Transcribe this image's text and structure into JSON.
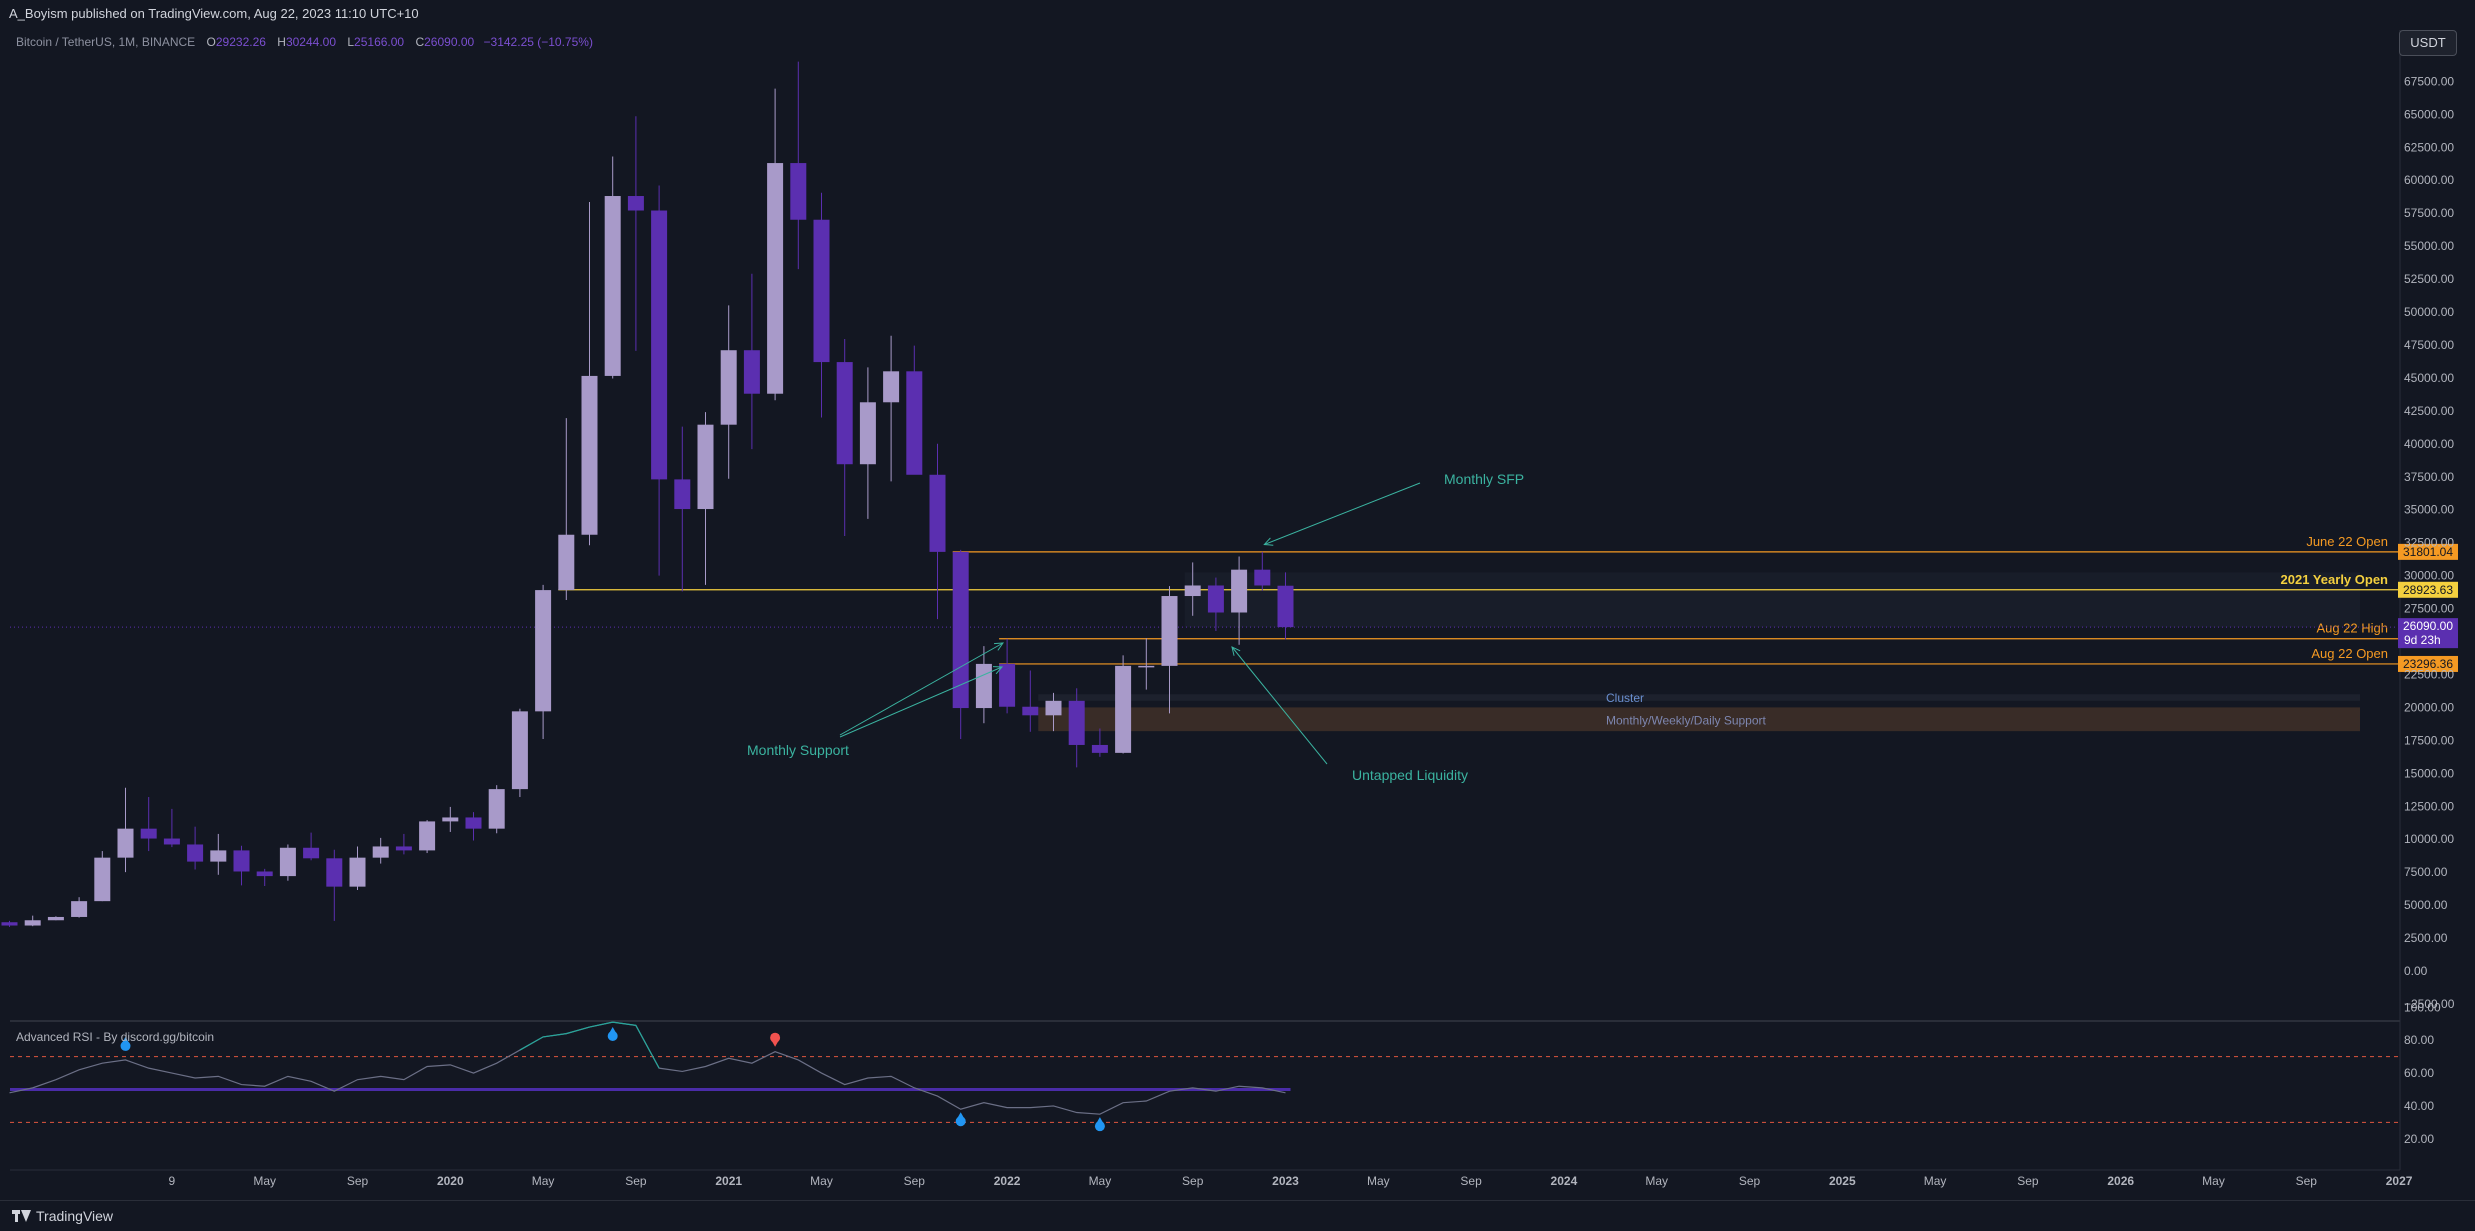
{
  "header": {
    "published": "A_Boyism published on TradingView.com, Aug 22, 2023 11:10 UTC+10",
    "currency_button": "USDT"
  },
  "legend": {
    "symbol": "Bitcoin / TetherUS, 1M, BINANCE",
    "o_label": "O",
    "o_value": "29232.26",
    "h_label": "H",
    "h_value": "30244.00",
    "l_label": "L",
    "l_value": "25166.00",
    "c_label": "C",
    "c_value": "26090.00",
    "change": "−3142.25 (−10.75%)"
  },
  "indicator": {
    "title": "Advanced RSI - By discord.gg/bitcoin"
  },
  "footer": {
    "brand": "TradingView"
  },
  "colors": {
    "background": "#131722",
    "up_candle": "#a89ac9",
    "down_candle": "#5b2fb0",
    "level_orange": "#f59a23",
    "level_yellow": "#f4d03f",
    "annotation_teal": "#3bb3a0",
    "rsi_signal_blue": "#2196f3",
    "rsi_signal_red": "#f0524f"
  },
  "chart_data": [
    {
      "type": "candlestick",
      "symbol": "Bitcoin / TetherUS, 1M, BINANCE",
      "timeframe": "1M",
      "y_axis": {
        "ticks": [
          67500,
          65000,
          62500,
          60000,
          57500,
          55000,
          52500,
          50000,
          47500,
          45000,
          42500,
          40000,
          37500,
          35000,
          32500,
          30000,
          27500,
          25000,
          22500,
          20000,
          17500,
          15000,
          12500,
          10000,
          7500,
          5000,
          2500,
          0,
          -2500
        ],
        "labels": [
          "67500.00",
          "65000.00",
          "62500.00",
          "60000.00",
          "57500.00",
          "55000.00",
          "52500.00",
          "50000.00",
          "47500.00",
          "45000.00",
          "42500.00",
          "40000.00",
          "37500.00",
          "35000.00",
          "32500.00",
          "30000.00",
          "27500.00",
          "25000.00",
          "22500.00",
          "20000.00",
          "17500.00",
          "15000.00",
          "12500.00",
          "10000.00",
          "7500.00",
          "5000.00",
          "2500.00",
          "0.00",
          "−2500.00"
        ],
        "range": [
          -3700,
          70300
        ]
      },
      "x_axis": {
        "labels": [
          "9",
          "May",
          "Sep",
          "2020",
          "May",
          "Sep",
          "2021",
          "May",
          "Sep",
          "2022",
          "May",
          "Sep",
          "2023",
          "May",
          "Sep",
          "2024",
          "May",
          "Sep",
          "2025",
          "May",
          "Sep",
          "2026",
          "May",
          "Sep",
          "2027",
          "May"
        ],
        "label_months": [
          7,
          11,
          15,
          19,
          23,
          27,
          31,
          35,
          39,
          43,
          47,
          51,
          55,
          59,
          63,
          67,
          71,
          75,
          79,
          83,
          87,
          91,
          95,
          99,
          103,
          107
        ]
      },
      "candles": [
        {
          "t": "2019-01",
          "o": 3700,
          "h": 3800,
          "l": 3350,
          "c": 3450
        },
        {
          "t": "2019-02",
          "o": 3450,
          "h": 4200,
          "l": 3400,
          "c": 3850
        },
        {
          "t": "2019-03",
          "o": 3850,
          "h": 4150,
          "l": 3850,
          "c": 4100
        },
        {
          "t": "2019-04",
          "o": 4100,
          "h": 5600,
          "l": 4050,
          "c": 5300
        },
        {
          "t": "2019-05",
          "o": 5300,
          "h": 9100,
          "l": 5300,
          "c": 8600
        },
        {
          "t": "2019-06",
          "o": 8600,
          "h": 13900,
          "l": 7500,
          "c": 10800
        },
        {
          "t": "2019-07",
          "o": 10800,
          "h": 13200,
          "l": 9100,
          "c": 10050
        },
        {
          "t": "2019-08",
          "o": 10050,
          "h": 12300,
          "l": 9400,
          "c": 9600
        },
        {
          "t": "2019-09",
          "o": 9600,
          "h": 10950,
          "l": 7700,
          "c": 8300
        },
        {
          "t": "2019-10",
          "o": 8300,
          "h": 10400,
          "l": 7300,
          "c": 9150
        },
        {
          "t": "2019-11",
          "o": 9150,
          "h": 9500,
          "l": 6500,
          "c": 7550
        },
        {
          "t": "2019-12",
          "o": 7550,
          "h": 7750,
          "l": 6450,
          "c": 7200
        },
        {
          "t": "2020-01",
          "o": 7200,
          "h": 9600,
          "l": 6850,
          "c": 9350
        },
        {
          "t": "2020-02",
          "o": 9350,
          "h": 10500,
          "l": 8400,
          "c": 8550
        },
        {
          "t": "2020-03",
          "o": 8550,
          "h": 9200,
          "l": 3800,
          "c": 6400
        },
        {
          "t": "2020-04",
          "o": 6400,
          "h": 9450,
          "l": 6150,
          "c": 8600
        },
        {
          "t": "2020-05",
          "o": 8600,
          "h": 10100,
          "l": 8150,
          "c": 9450
        },
        {
          "t": "2020-06",
          "o": 9450,
          "h": 10400,
          "l": 8850,
          "c": 9150
        },
        {
          "t": "2020-07",
          "o": 9150,
          "h": 11450,
          "l": 8950,
          "c": 11350
        },
        {
          "t": "2020-08",
          "o": 11350,
          "h": 12450,
          "l": 10550,
          "c": 11650
        },
        {
          "t": "2020-09",
          "o": 11650,
          "h": 12050,
          "l": 9900,
          "c": 10800
        },
        {
          "t": "2020-10",
          "o": 10800,
          "h": 14100,
          "l": 10450,
          "c": 13800
        },
        {
          "t": "2020-11",
          "o": 13800,
          "h": 19900,
          "l": 13200,
          "c": 19700
        },
        {
          "t": "2020-12",
          "o": 19700,
          "h": 29300,
          "l": 17600,
          "c": 28900
        },
        {
          "t": "2021-01",
          "o": 28900,
          "h": 41950,
          "l": 28150,
          "c": 33100
        },
        {
          "t": "2021-02",
          "o": 33100,
          "h": 58350,
          "l": 32300,
          "c": 45150
        },
        {
          "t": "2021-03",
          "o": 45150,
          "h": 61800,
          "l": 44950,
          "c": 58800
        },
        {
          "t": "2021-04",
          "o": 58800,
          "h": 64850,
          "l": 47050,
          "c": 57700
        },
        {
          "t": "2021-05",
          "o": 57700,
          "h": 59600,
          "l": 30000,
          "c": 37300
        },
        {
          "t": "2021-06",
          "o": 37300,
          "h": 41300,
          "l": 28800,
          "c": 35050
        },
        {
          "t": "2021-07",
          "o": 35050,
          "h": 42400,
          "l": 29300,
          "c": 41450
        },
        {
          "t": "2021-08",
          "o": 41450,
          "h": 50500,
          "l": 37350,
          "c": 47100
        },
        {
          "t": "2021-09",
          "o": 47100,
          "h": 52900,
          "l": 39600,
          "c": 43800
        },
        {
          "t": "2021-10",
          "o": 43800,
          "h": 66950,
          "l": 43300,
          "c": 61300
        },
        {
          "t": "2021-11",
          "o": 61300,
          "h": 69000,
          "l": 53250,
          "c": 57000
        },
        {
          "t": "2021-12",
          "o": 57000,
          "h": 59050,
          "l": 42000,
          "c": 46200
        },
        {
          "t": "2022-01",
          "o": 46200,
          "h": 47950,
          "l": 33000,
          "c": 38450
        },
        {
          "t": "2022-02",
          "o": 38450,
          "h": 45800,
          "l": 34300,
          "c": 43150
        },
        {
          "t": "2022-03",
          "o": 43150,
          "h": 48200,
          "l": 37150,
          "c": 45500
        },
        {
          "t": "2022-04",
          "o": 45500,
          "h": 47450,
          "l": 37700,
          "c": 37650
        },
        {
          "t": "2022-05",
          "o": 37650,
          "h": 40000,
          "l": 26700,
          "c": 31800
        },
        {
          "t": "2022-06",
          "o": 31800,
          "h": 31950,
          "l": 17600,
          "c": 19950
        },
        {
          "t": "2022-07",
          "o": 19950,
          "h": 24650,
          "l": 18800,
          "c": 23300
        },
        {
          "t": "2022-08",
          "o": 23300,
          "h": 25200,
          "l": 19550,
          "c": 20050
        },
        {
          "t": "2022-09",
          "o": 20050,
          "h": 22800,
          "l": 18150,
          "c": 19400
        },
        {
          "t": "2022-10",
          "o": 19400,
          "h": 21100,
          "l": 18200,
          "c": 20500
        },
        {
          "t": "2022-11",
          "o": 20500,
          "h": 21450,
          "l": 15450,
          "c": 17150
        },
        {
          "t": "2022-12",
          "o": 17150,
          "h": 18400,
          "l": 16250,
          "c": 16550
        },
        {
          "t": "2023-01",
          "o": 16550,
          "h": 23950,
          "l": 16500,
          "c": 23150
        },
        {
          "t": "2023-02",
          "o": 23150,
          "h": 25250,
          "l": 21350,
          "c": 23150
        },
        {
          "t": "2023-03",
          "o": 23150,
          "h": 29200,
          "l": 19550,
          "c": 28450
        },
        {
          "t": "2023-04",
          "o": 28450,
          "h": 31000,
          "l": 26950,
          "c": 29250
        },
        {
          "t": "2023-05",
          "o": 29250,
          "h": 29850,
          "l": 25800,
          "c": 27200
        },
        {
          "t": "2023-06",
          "o": 27200,
          "h": 31450,
          "l": 24750,
          "c": 30450
        },
        {
          "t": "2023-07",
          "o": 30450,
          "h": 31800,
          "l": 28850,
          "c": 29250
        },
        {
          "t": "2023-08",
          "o": 29232.26,
          "h": 30244.0,
          "l": 25166.0,
          "c": 26090.0
        }
      ],
      "levels": [
        {
          "label": "June 22 Open",
          "price": 31801.04,
          "price_label": "31801.04",
          "color": "#f59a23",
          "start": "2022-06"
        },
        {
          "label": "2021 Yearly Open",
          "price": 28923.63,
          "price_label": "28923.63",
          "color": "#f4d03f",
          "start": "2021-01"
        },
        {
          "label": "Aug 22 High",
          "price": 25211.32,
          "price_label": "25211.32",
          "color": "#f59a23",
          "start": "2022-08"
        },
        {
          "label": "Aug 22 Open",
          "price": 23296.36,
          "price_label": "23296.36",
          "color": "#f59a23",
          "start": "2022-08"
        }
      ],
      "last_price": {
        "value": "26090.00",
        "countdown": "9d 23h"
      },
      "zones": [
        {
          "label": "Cluster",
          "from": 20500,
          "to": 21000,
          "start": "2022-09"
        },
        {
          "label": "Monthly/Weekly/Daily Support",
          "from": 18200,
          "to": 20000,
          "start": "2022-09"
        }
      ],
      "annotations": [
        {
          "text": "Monthly SFP",
          "anchor_month": "2023-07",
          "anchor_price": 31900
        },
        {
          "text": "Monthly Support",
          "anchor_month": "2022-06",
          "anchor_price": 25300,
          "second_anchor_month": "2022-06",
          "second_anchor_price": 23400
        },
        {
          "text": "Untapped Liquidity",
          "anchor_month": "2023-05",
          "anchor_price": 25100
        }
      ]
    },
    {
      "type": "line",
      "title": "Advanced RSI - By discord.gg/bitcoin",
      "y_axis": {
        "ticks": [
          100,
          80,
          60,
          40,
          20
        ],
        "labels": [
          "100.00",
          "80.00",
          "60.00",
          "40.00",
          "20.00"
        ],
        "range": [
          15,
          103
        ]
      },
      "overbought": 70,
      "oversold": 30,
      "midline": 50,
      "series": [
        {
          "values": [
            48,
            51,
            56,
            62,
            66,
            68,
            63,
            60,
            57,
            58,
            53,
            52,
            58,
            55,
            49,
            56,
            58,
            56,
            64,
            65,
            60,
            66,
            74,
            82,
            84,
            88,
            91,
            89,
            63,
            61,
            64,
            69,
            66,
            73,
            68,
            60,
            53,
            57,
            58,
            51,
            46,
            38,
            42,
            39,
            39,
            40,
            36,
            35,
            42,
            43,
            49,
            51,
            49,
            52,
            51,
            48
          ]
        }
      ],
      "signals": [
        {
          "month": "2019-06",
          "type": "oversold-buy",
          "color": "#2196f3"
        },
        {
          "month": "2021-03",
          "type": "oversold-buy",
          "color": "#2196f3"
        },
        {
          "month": "2021-10",
          "type": "sell",
          "color": "#f0524f"
        },
        {
          "month": "2022-06",
          "type": "oversold-buy",
          "color": "#2196f3"
        },
        {
          "month": "2022-12",
          "type": "oversold-buy",
          "color": "#2196f3"
        }
      ]
    }
  ]
}
